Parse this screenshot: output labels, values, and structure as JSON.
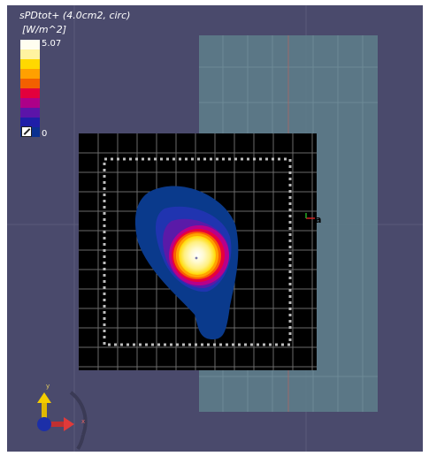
{
  "legend": {
    "title": "sPDtot+ (4.0cm2, circ)",
    "unit": "[W/m^2]",
    "max": "5.07",
    "min": "0",
    "colors": [
      "#fffef0",
      "#fff3a0",
      "#ffd800",
      "#ffa000",
      "#f26000",
      "#e3003c",
      "#ad0088",
      "#5c14a8",
      "#1f1ea8",
      "#0a3090"
    ]
  },
  "scene": {
    "background": "#4a4a6c",
    "plane_color": "#5d7c89",
    "grid_color": "#9a9a9a",
    "spot_marker": "a"
  },
  "orientation": {
    "x_label": "x",
    "y_label": "y"
  }
}
